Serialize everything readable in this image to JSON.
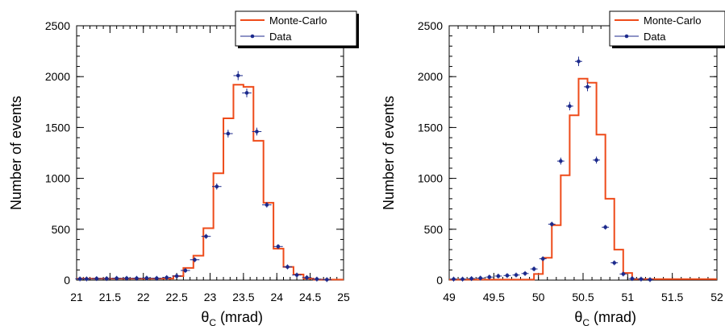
{
  "colors": {
    "monte_carlo": "#ee4b1a",
    "data": "#1c2a8c",
    "axis": "#000000"
  },
  "chart_data": [
    {
      "type": "histogram",
      "xlabel": "θC (mrad)",
      "xlabel_symbol": "θ",
      "xlabel_subscript": "C",
      "xlabel_unit": "(mrad)",
      "ylabel": "Number of events",
      "xlim": [
        21,
        25
      ],
      "ylim": [
        0,
        2500
      ],
      "xticks": [
        "21",
        "21.5",
        "22",
        "22.5",
        "23",
        "23.5",
        "24",
        "24.5",
        "25"
      ],
      "yticks": [
        "0",
        "500",
        "1000",
        "1500",
        "2000",
        "2500"
      ],
      "legend_position": "top-right",
      "legend": [
        "Monte-Carlo",
        "Data"
      ],
      "series": [
        {
          "name": "Monte-Carlo",
          "kind": "step",
          "bin_edges": [
            21.0,
            22.45,
            22.6,
            22.75,
            22.9,
            23.05,
            23.2,
            23.35,
            23.5,
            23.65,
            23.8,
            23.95,
            24.1,
            24.25,
            24.4,
            24.55,
            25.0
          ],
          "values": [
            15,
            40,
            120,
            240,
            510,
            1050,
            1590,
            1920,
            1900,
            1370,
            760,
            310,
            130,
            55,
            15,
            5
          ]
        },
        {
          "name": "Data",
          "kind": "points",
          "x": [
            21.05,
            21.15,
            21.3,
            21.45,
            21.6,
            21.75,
            21.9,
            22.05,
            22.2,
            22.35,
            22.5,
            22.63,
            22.77,
            22.94,
            23.1,
            23.27,
            23.42,
            23.55,
            23.7,
            23.85,
            24.02,
            24.16,
            24.3,
            24.45,
            24.6,
            24.75
          ],
          "y": [
            12,
            12,
            15,
            15,
            18,
            18,
            18,
            20,
            18,
            25,
            40,
            95,
            200,
            430,
            920,
            1440,
            2010,
            1840,
            1460,
            740,
            330,
            130,
            50,
            25,
            10,
            5
          ],
          "xerr": 0.07
        }
      ]
    },
    {
      "type": "histogram",
      "xlabel": "θC (mrad)",
      "xlabel_symbol": "θ",
      "xlabel_subscript": "C",
      "xlabel_unit": "(mrad)",
      "ylabel": "Number of events",
      "xlim": [
        49,
        52
      ],
      "ylim": [
        0,
        2500
      ],
      "xticks": [
        "49",
        "49.5",
        "50",
        "50.5",
        "51",
        "51.5",
        "52"
      ],
      "yticks": [
        "0",
        "500",
        "1000",
        "1500",
        "2000",
        "2500"
      ],
      "legend_position": "top-right",
      "legend": [
        "Monte-Carlo",
        "Data"
      ],
      "series": [
        {
          "name": "Monte-Carlo",
          "kind": "step",
          "bin_edges": [
            49.0,
            49.95,
            50.05,
            50.15,
            50.25,
            50.35,
            50.45,
            50.55,
            50.65,
            50.75,
            50.85,
            50.95,
            51.05,
            52.0
          ],
          "values": [
            5,
            60,
            220,
            540,
            1030,
            1620,
            1980,
            1940,
            1430,
            800,
            300,
            70,
            10
          ]
        },
        {
          "name": "Data",
          "kind": "points",
          "x": [
            49.05,
            49.15,
            49.25,
            49.35,
            49.45,
            49.55,
            49.65,
            49.75,
            49.85,
            49.95,
            50.05,
            50.15,
            50.25,
            50.35,
            50.45,
            50.55,
            50.65,
            50.75,
            50.85,
            50.95,
            51.05,
            51.15,
            51.25
          ],
          "y": [
            10,
            10,
            15,
            20,
            30,
            40,
            45,
            50,
            65,
            110,
            210,
            550,
            1170,
            1710,
            2150,
            1900,
            1180,
            520,
            170,
            60,
            15,
            10,
            5
          ],
          "xerr": 0.04
        }
      ]
    }
  ]
}
